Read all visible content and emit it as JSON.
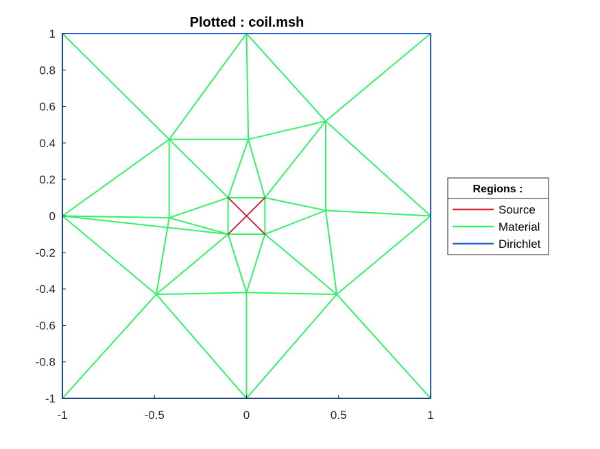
{
  "chart_data": {
    "type": "line",
    "title": "Plotted : coil.msh",
    "xlabel": "",
    "ylabel": "",
    "xlim": [
      -1,
      1
    ],
    "ylim": [
      -1,
      1
    ],
    "x_ticks": [
      -1,
      -0.5,
      0,
      0.5,
      1
    ],
    "x_tick_labels": [
      "-1",
      "-0.5",
      "0",
      "0.5",
      "1"
    ],
    "y_ticks": [
      1,
      0.8,
      0.6,
      0.4,
      0.2,
      0,
      -0.2,
      -0.4,
      -0.6,
      -0.8,
      -1
    ],
    "y_tick_labels": [
      "1",
      "0.8",
      "0.6",
      "0.4",
      "0.2",
      "0",
      "-0.2",
      "-0.4",
      "-0.6",
      "-0.8",
      "-1"
    ],
    "grid": false,
    "legend": {
      "title": "Regions :",
      "placement": "outside-right"
    },
    "series": [
      {
        "name": "Source",
        "color": "#d7263d",
        "segments": [
          [
            [
              -0.1,
              0.1
            ],
            [
              0.1,
              -0.1
            ]
          ],
          [
            [
              -0.1,
              -0.1
            ],
            [
              0.1,
              0.1
            ]
          ]
        ]
      },
      {
        "name": "Material",
        "color": "#33f06a",
        "segments": [
          [
            [
              -1,
              1
            ],
            [
              -0.42,
              0.42
            ]
          ],
          [
            [
              0,
              1
            ],
            [
              -0.42,
              0.42
            ]
          ],
          [
            [
              0,
              1
            ],
            [
              0.43,
              0.52
            ]
          ],
          [
            [
              1,
              1
            ],
            [
              0.43,
              0.52
            ]
          ],
          [
            [
              0,
              1
            ],
            [
              0.01,
              0.42
            ]
          ],
          [
            [
              -1,
              0
            ],
            [
              -0.42,
              0.42
            ]
          ],
          [
            [
              -1,
              0
            ],
            [
              -0.42,
              -0.01
            ]
          ],
          [
            [
              -1,
              0
            ],
            [
              -0.1,
              -0.1
            ]
          ],
          [
            [
              -1,
              0
            ],
            [
              -0.49,
              -0.43
            ]
          ],
          [
            [
              -1,
              -1
            ],
            [
              -0.49,
              -0.43
            ]
          ],
          [
            [
              0,
              -1
            ],
            [
              -0.49,
              -0.43
            ]
          ],
          [
            [
              0,
              -1
            ],
            [
              0.49,
              -0.43
            ]
          ],
          [
            [
              0,
              -1
            ],
            [
              0,
              -0.42
            ]
          ],
          [
            [
              1,
              -1
            ],
            [
              0.49,
              -0.43
            ]
          ],
          [
            [
              1,
              0
            ],
            [
              0.49,
              -0.43
            ]
          ],
          [
            [
              1,
              0
            ],
            [
              0.43,
              0.52
            ]
          ],
          [
            [
              1,
              0
            ],
            [
              0.43,
              0.03
            ]
          ],
          [
            [
              -0.42,
              0.42
            ],
            [
              0.01,
              0.42
            ]
          ],
          [
            [
              0.01,
              0.42
            ],
            [
              0.43,
              0.52
            ]
          ],
          [
            [
              -0.42,
              0.42
            ],
            [
              -0.42,
              -0.01
            ]
          ],
          [
            [
              0.43,
              0.52
            ],
            [
              0.43,
              0.03
            ]
          ],
          [
            [
              0.43,
              0.03
            ],
            [
              0.49,
              -0.43
            ]
          ],
          [
            [
              -0.42,
              -0.01
            ],
            [
              -0.49,
              -0.43
            ]
          ],
          [
            [
              -0.49,
              -0.43
            ],
            [
              0,
              -0.42
            ]
          ],
          [
            [
              0,
              -0.42
            ],
            [
              0.49,
              -0.43
            ]
          ],
          [
            [
              -0.1,
              0.1
            ],
            [
              0.1,
              0.1
            ]
          ],
          [
            [
              0.1,
              0.1
            ],
            [
              0.1,
              -0.1
            ]
          ],
          [
            [
              0.1,
              -0.1
            ],
            [
              -0.1,
              -0.1
            ]
          ],
          [
            [
              -0.1,
              -0.1
            ],
            [
              -0.1,
              0.1
            ]
          ],
          [
            [
              -0.1,
              0.1
            ],
            [
              0.01,
              0.42
            ]
          ],
          [
            [
              0.1,
              0.1
            ],
            [
              0.01,
              0.42
            ]
          ],
          [
            [
              -0.1,
              0.1
            ],
            [
              -0.42,
              0.42
            ]
          ],
          [
            [
              -0.1,
              0.1
            ],
            [
              -0.42,
              -0.01
            ]
          ],
          [
            [
              -0.1,
              -0.1
            ],
            [
              -0.42,
              -0.01
            ]
          ],
          [
            [
              -0.1,
              -0.1
            ],
            [
              -0.49,
              -0.43
            ]
          ],
          [
            [
              -0.1,
              -0.1
            ],
            [
              0,
              -0.42
            ]
          ],
          [
            [
              0.1,
              -0.1
            ],
            [
              0,
              -0.42
            ]
          ],
          [
            [
              0.1,
              -0.1
            ],
            [
              0.49,
              -0.43
            ]
          ],
          [
            [
              0.1,
              -0.1
            ],
            [
              0.43,
              0.03
            ]
          ],
          [
            [
              0.1,
              0.1
            ],
            [
              0.43,
              0.03
            ]
          ],
          [
            [
              0.1,
              0.1
            ],
            [
              0.43,
              0.52
            ]
          ]
        ]
      },
      {
        "name": "Dirichlet",
        "color": "#1f5fd6",
        "segments": [
          [
            [
              -1,
              1
            ],
            [
              1,
              1
            ]
          ],
          [
            [
              1,
              1
            ],
            [
              1,
              -1
            ]
          ],
          [
            [
              1,
              -1
            ],
            [
              -1,
              -1
            ]
          ],
          [
            [
              -1,
              -1
            ],
            [
              -1,
              1
            ]
          ]
        ]
      }
    ]
  }
}
